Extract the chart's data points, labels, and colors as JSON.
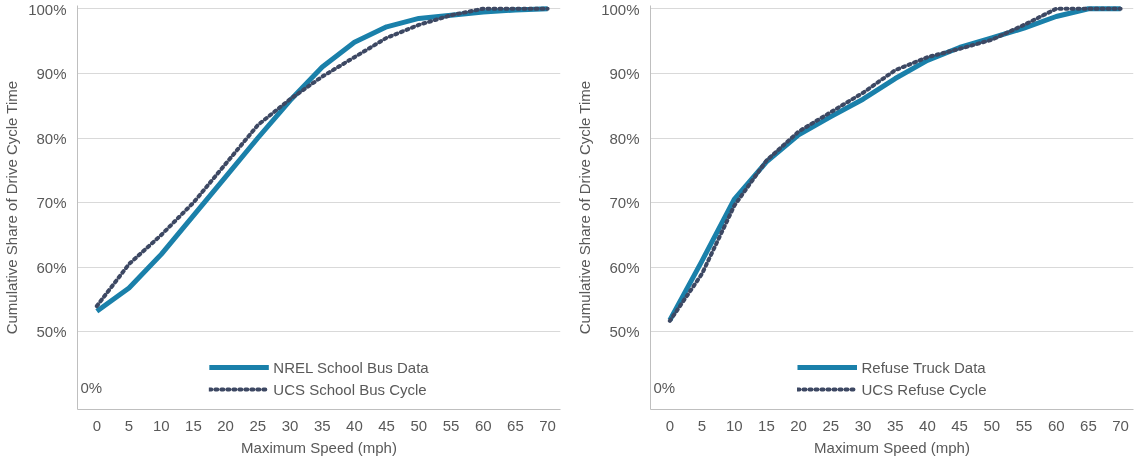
{
  "chart_data": [
    {
      "type": "line",
      "xlabel": "Maximum Speed (mph)",
      "ylabel": "Cumulative Share of Drive Cycle Time",
      "x": [
        0,
        5,
        10,
        15,
        20,
        25,
        30,
        35,
        40,
        45,
        50,
        55,
        60,
        65,
        70
      ],
      "series": [
        {
          "name": "NREL School Bus Data",
          "color": "#1a80aa",
          "line_style": "solid",
          "values": [
            53.2,
            56.8,
            62,
            68,
            74,
            80,
            85.8,
            91,
            94.8,
            97.2,
            98.5,
            99,
            99.5,
            99.8,
            100
          ]
        },
        {
          "name": "UCS School Bus Cycle",
          "color": "#3d4863",
          "line_style": "dotted",
          "values": [
            54,
            60.5,
            65,
            70,
            76,
            82,
            86,
            89.5,
            92.5,
            95.5,
            97.5,
            99,
            100,
            100,
            100
          ]
        }
      ],
      "xlim": [
        -3,
        72
      ],
      "xticks": [
        0,
        5,
        10,
        15,
        20,
        25,
        30,
        35,
        40,
        45,
        50,
        55,
        60,
        65,
        70
      ],
      "ylim": [
        38,
        100.5
      ],
      "yticks": [
        {
          "value": 50,
          "label": "50%"
        },
        {
          "value": 60,
          "label": "60%"
        },
        {
          "value": 70,
          "label": "70%"
        },
        {
          "value": 80,
          "label": "80%"
        },
        {
          "value": 90,
          "label": "90%"
        },
        {
          "value": 100,
          "label": "100%"
        }
      ],
      "annotations": [
        "0%"
      ],
      "grid": "y",
      "legend": "bottom",
      "marker": "none"
    },
    {
      "type": "line",
      "xlabel": "Maximum Speed (mph)",
      "ylabel": "Cumulative Share of Drive Cycle Time",
      "x": [
        0,
        5,
        10,
        15,
        20,
        25,
        30,
        35,
        40,
        45,
        50,
        55,
        60,
        65,
        70
      ],
      "series": [
        {
          "name": "Refuse Truck Data",
          "color": "#1a80aa",
          "line_style": "solid",
          "values": [
            51.8,
            61,
            70.5,
            76.3,
            80.5,
            83.3,
            86,
            89.2,
            92,
            94,
            95.5,
            97,
            98.8,
            100,
            100
          ]
        },
        {
          "name": "UCS Refuse Cycle",
          "color": "#3d4863",
          "line_style": "dotted",
          "values": [
            51.7,
            59,
            69.5,
            76.5,
            81,
            84,
            87,
            90.5,
            92.5,
            93.8,
            95.2,
            97.5,
            100,
            100,
            100
          ]
        }
      ],
      "xlim": [
        -3,
        72
      ],
      "xticks": [
        0,
        5,
        10,
        15,
        20,
        25,
        30,
        35,
        40,
        45,
        50,
        55,
        60,
        65,
        70
      ],
      "ylim": [
        38,
        100.5
      ],
      "yticks": [
        {
          "value": 50,
          "label": "50%"
        },
        {
          "value": 60,
          "label": "60%"
        },
        {
          "value": 70,
          "label": "70%"
        },
        {
          "value": 80,
          "label": "80%"
        },
        {
          "value": 90,
          "label": "90%"
        },
        {
          "value": 100,
          "label": "100%"
        }
      ],
      "annotations": [
        "0%"
      ],
      "grid": "y",
      "legend": "bottom",
      "marker": "none"
    }
  ]
}
